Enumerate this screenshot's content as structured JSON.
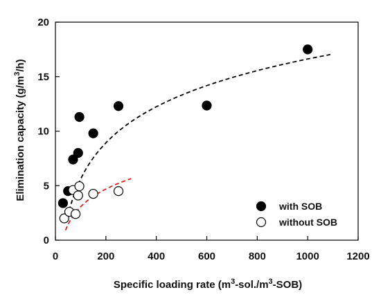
{
  "chart_data": {
    "type": "scatter",
    "xlabel": {
      "main": "Specific loading rate (m",
      "sup1": "3",
      "mid": "-sol./m",
      "sup2": "3",
      "end": "-SOB)"
    },
    "ylabel": {
      "main": "Elimination capacity (g/m",
      "sup": "3",
      "end": "/h)"
    },
    "xlim": [
      0,
      1200
    ],
    "ylim": [
      0,
      20
    ],
    "x_ticks": [
      0,
      200,
      400,
      600,
      800,
      1000,
      1200
    ],
    "y_ticks": [
      0,
      5,
      10,
      15,
      20
    ],
    "grid": false,
    "legend_position": "bottom-right",
    "series": [
      {
        "name": "with SOB",
        "marker": "filled-circle",
        "color": "#000000",
        "points": [
          {
            "x": 30,
            "y": 3.4
          },
          {
            "x": 50,
            "y": 4.5
          },
          {
            "x": 70,
            "y": 7.4
          },
          {
            "x": 90,
            "y": 8.0
          },
          {
            "x": 95,
            "y": 11.3
          },
          {
            "x": 150,
            "y": 9.8
          },
          {
            "x": 250,
            "y": 12.3
          },
          {
            "x": 600,
            "y": 12.35
          },
          {
            "x": 1000,
            "y": 17.5
          }
        ],
        "fit": {
          "style": "dashed",
          "color": "#000000",
          "model": "logarithmic",
          "a": -16.4,
          "b": 4.78,
          "x_range": [
            48,
            1090
          ]
        }
      },
      {
        "name": "without SOB",
        "marker": "open-circle",
        "color": "#000000",
        "points": [
          {
            "x": 35,
            "y": 2.0
          },
          {
            "x": 55,
            "y": 2.6
          },
          {
            "x": 70,
            "y": 4.6
          },
          {
            "x": 80,
            "y": 2.4
          },
          {
            "x": 90,
            "y": 4.1
          },
          {
            "x": 95,
            "y": 4.95
          },
          {
            "x": 150,
            "y": 4.25
          },
          {
            "x": 250,
            "y": 4.5
          }
        ],
        "fit": {
          "style": "dashed",
          "color": "#e02020",
          "model": "logarithmic",
          "a": -7.76,
          "b": 2.35,
          "x_range": [
            40,
            300
          ]
        }
      }
    ]
  }
}
